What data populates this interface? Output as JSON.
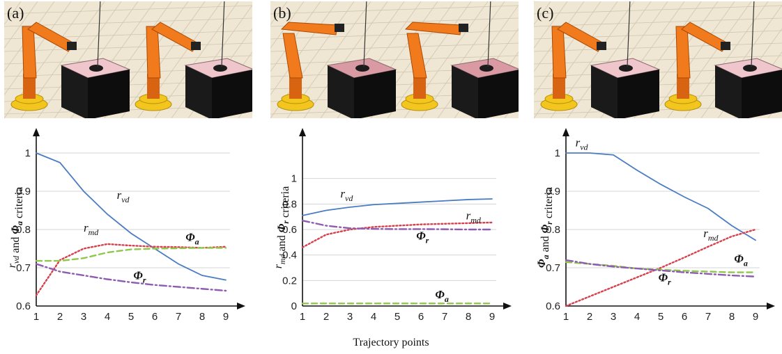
{
  "x_axis_label": "Trajectory points",
  "colors": {
    "r_vd": "#4a7cc4",
    "r_md": "#d6404c",
    "phi_a": "#8ec74a",
    "phi_r": "#8d5bb0",
    "robot": "#f07a1c",
    "robot_base": "#f2c61f",
    "table_top": "#efc6cc",
    "table_body": "#1a1a1a",
    "floor": "#efe7d3"
  },
  "panels": [
    {
      "label": "(a)",
      "ylabel_parts": [
        [
          "r",
          "vd",
          ""
        ],
        [
          " and ",
          "",
          ""
        ],
        [
          "Φ",
          "a",
          "b"
        ],
        [
          " criteria",
          "",
          ""
        ]
      ],
      "scene_icon": "robot-arm-scene"
    },
    {
      "label": "(b)",
      "ylabel_parts": [
        [
          "r",
          "md",
          ""
        ],
        [
          " and ",
          "",
          ""
        ],
        [
          "Φ",
          "r",
          "b"
        ],
        [
          " criteria",
          "",
          ""
        ]
      ],
      "scene_icon": "robot-arm-scene"
    },
    {
      "label": "(c)",
      "ylabel_parts": [
        [
          "Φ",
          "a",
          "b"
        ],
        [
          " and ",
          "",
          ""
        ],
        [
          "Φ",
          "r",
          "b"
        ],
        [
          " criteria",
          "",
          ""
        ]
      ],
      "scene_icon": "robot-arm-scene"
    }
  ],
  "chart_data": [
    {
      "type": "line",
      "x": [
        1,
        2,
        3,
        4,
        5,
        6,
        7,
        8,
        9
      ],
      "xlabel": "Trajectory points",
      "ylim": [
        0.6,
        1.0
      ],
      "yticks": [
        0.6,
        0.7,
        0.8,
        0.9,
        1.0
      ],
      "ytick_labels": [
        "0.6",
        "0.7",
        "0.8",
        "0.9",
        "1"
      ],
      "grid": true,
      "series": [
        {
          "name": "r_vd",
          "name_main": "r",
          "name_sub": "vd",
          "key": "r_vd",
          "style": "solid",
          "values": [
            1.0,
            0.975,
            0.9,
            0.84,
            0.79,
            0.75,
            0.71,
            0.68,
            0.668
          ],
          "label_at": [
            4.4,
            0.88
          ]
        },
        {
          "name": "r_md",
          "name_main": "r",
          "name_sub": "md",
          "key": "r_md",
          "style": "dotted",
          "values": [
            0.628,
            0.72,
            0.75,
            0.762,
            0.758,
            0.755,
            0.754,
            0.752,
            0.755
          ],
          "label_at": [
            3.0,
            0.795
          ]
        },
        {
          "name": "Φ_a",
          "name_main": "Φ",
          "name_sub": "a",
          "key": "phi_a",
          "style": "dashed",
          "values": [
            0.718,
            0.718,
            0.725,
            0.74,
            0.748,
            0.75,
            0.751,
            0.752,
            0.752
          ],
          "label_at": [
            7.3,
            0.77
          ]
        },
        {
          "name": "Φ_r",
          "name_main": "Φ",
          "name_sub": "r",
          "key": "phi_r",
          "style": "dashdot",
          "values": [
            0.71,
            0.69,
            0.68,
            0.67,
            0.662,
            0.655,
            0.65,
            0.645,
            0.64
          ],
          "label_at": [
            5.1,
            0.67
          ]
        }
      ]
    },
    {
      "type": "line",
      "x": [
        1,
        2,
        3,
        4,
        5,
        6,
        7,
        8,
        9
      ],
      "xlabel": "Trajectory points",
      "ylim": [
        0.0,
        1.2
      ],
      "yticks": [
        0.0,
        0.2,
        0.4,
        0.6,
        0.8,
        1.0
      ],
      "ytick_labels": [
        "0",
        "0.2",
        "0.4",
        "0.6",
        "0.8",
        "1"
      ],
      "grid": true,
      "series": [
        {
          "name": "r_vd",
          "name_main": "r",
          "name_sub": "vd",
          "key": "r_vd",
          "style": "solid",
          "values": [
            0.71,
            0.75,
            0.775,
            0.795,
            0.805,
            0.815,
            0.825,
            0.835,
            0.84
          ],
          "label_at": [
            2.6,
            0.85
          ]
        },
        {
          "name": "r_md",
          "name_main": "r",
          "name_sub": "md",
          "key": "r_md",
          "style": "dotted",
          "values": [
            0.46,
            0.56,
            0.6,
            0.62,
            0.63,
            0.64,
            0.645,
            0.65,
            0.655
          ],
          "label_at": [
            7.9,
            0.68
          ]
        },
        {
          "name": "Φ_r",
          "name_main": "Φ",
          "name_sub": "r",
          "key": "phi_r",
          "style": "dashdot",
          "values": [
            0.67,
            0.63,
            0.61,
            0.605,
            0.603,
            0.603,
            0.602,
            0.6,
            0.6
          ],
          "label_at": [
            5.8,
            0.52
          ]
        },
        {
          "name": "Φ_a",
          "name_main": "Φ",
          "name_sub": "a",
          "key": "phi_a",
          "style": "dashed",
          "values": [
            0.02,
            0.02,
            0.02,
            0.02,
            0.02,
            0.02,
            0.02,
            0.02,
            0.02
          ],
          "label_at": [
            6.6,
            0.06
          ]
        }
      ]
    },
    {
      "type": "line",
      "x": [
        1,
        2,
        3,
        4,
        5,
        6,
        7,
        8,
        9
      ],
      "xlabel": "Trajectory points",
      "ylim": [
        0.6,
        1.0
      ],
      "yticks": [
        0.6,
        0.7,
        0.8,
        0.9,
        1.0
      ],
      "ytick_labels": [
        "0.6",
        "0.7",
        "0.8",
        "0.9",
        "1"
      ],
      "grid": true,
      "series": [
        {
          "name": "r_vd",
          "name_main": "r",
          "name_sub": "vd",
          "key": "r_vd",
          "style": "solid",
          "values": [
            1.0,
            1.0,
            0.995,
            0.955,
            0.918,
            0.885,
            0.855,
            0.81,
            0.772
          ],
          "label_at": [
            1.4,
            1.017
          ]
        },
        {
          "name": "r_md",
          "name_main": "r",
          "name_sub": "md",
          "key": "r_md",
          "style": "dotted",
          "values": [
            0.6,
            0.625,
            0.65,
            0.675,
            0.7,
            0.727,
            0.755,
            0.782,
            0.8
          ],
          "label_at": [
            6.8,
            0.78
          ]
        },
        {
          "name": "Φ_a",
          "name_main": "Φ",
          "name_sub": "a",
          "key": "phi_a",
          "style": "dashed",
          "values": [
            0.715,
            0.71,
            0.705,
            0.698,
            0.695,
            0.692,
            0.69,
            0.688,
            0.688
          ],
          "label_at": [
            8.1,
            0.714
          ]
        },
        {
          "name": "Φ_r",
          "name_main": "Φ",
          "name_sub": "r",
          "key": "phi_r",
          "style": "dashdot",
          "values": [
            0.72,
            0.71,
            0.703,
            0.698,
            0.693,
            0.688,
            0.684,
            0.68,
            0.677
          ],
          "label_at": [
            4.9,
            0.665
          ]
        }
      ]
    }
  ]
}
